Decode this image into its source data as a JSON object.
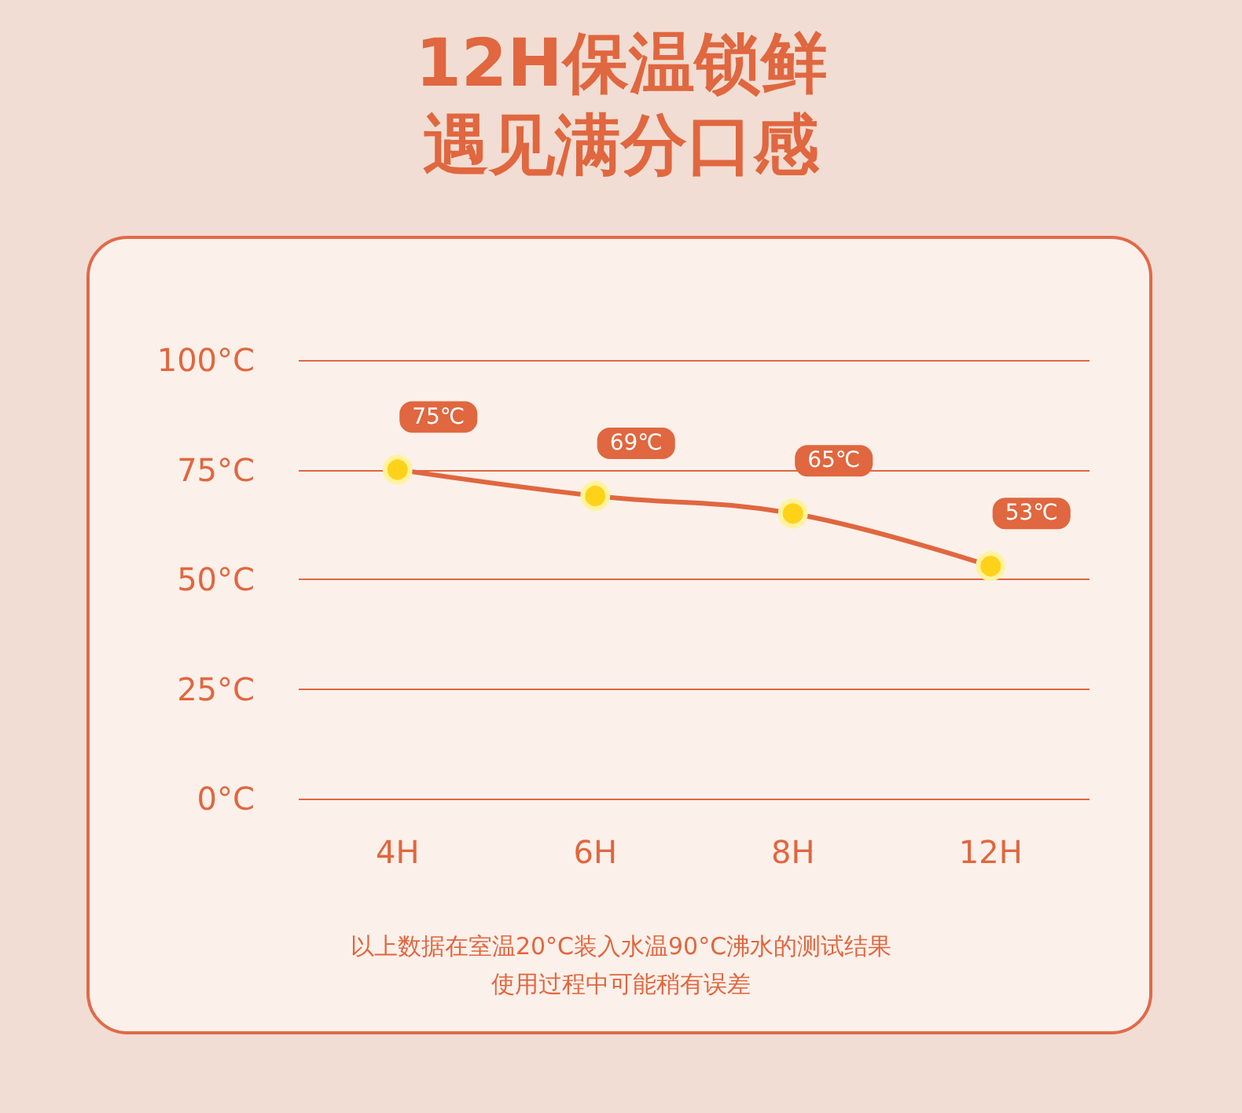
{
  "chart_data": {
    "type": "line",
    "title": "12H保温锁鲜",
    "subtitle": "遇见满分口感",
    "categories": [
      "4H",
      "6H",
      "8H",
      "12H"
    ],
    "series": [
      {
        "color": "#e0673f",
        "values": [
          75,
          69,
          65,
          53
        ],
        "value_labels": [
          "75℃",
          "69℃",
          "65℃",
          "53℃"
        ]
      }
    ],
    "ylim": [
      0,
      100
    ],
    "yticks": [
      {
        "value": 0,
        "label": "0°C"
      },
      {
        "value": 25,
        "label": "25°C"
      },
      {
        "value": 50,
        "label": "50°C"
      },
      {
        "value": 75,
        "label": "75°C"
      },
      {
        "value": 100,
        "label": "100°C"
      }
    ],
    "grid": "y",
    "marker": "circle",
    "line_style": "solid",
    "annotations": [
      "以上数据在室温20°C装入水温90°C沸水的测试结果",
      "使用过程中可能稍有误差"
    ]
  }
}
